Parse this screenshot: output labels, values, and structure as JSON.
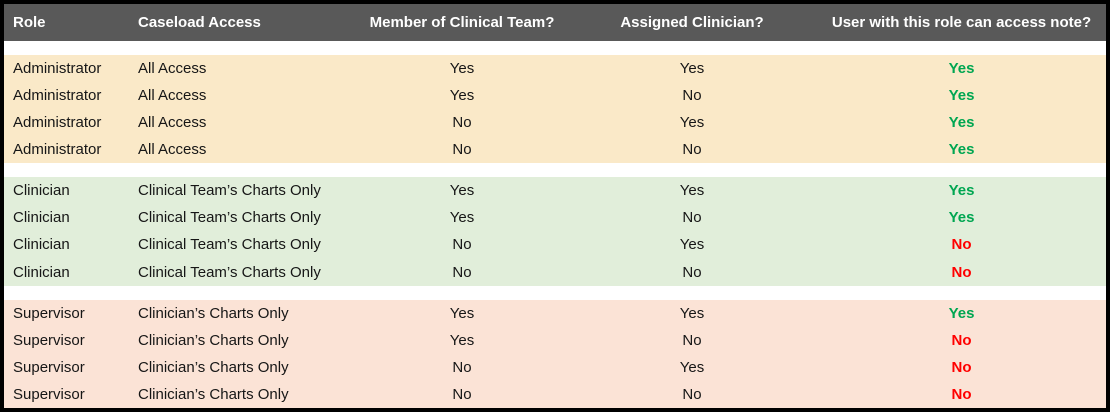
{
  "colors": {
    "frame_border": "#000000",
    "header_bg": "#595959",
    "header_text": "#FFFFFF",
    "body_text": "#161616",
    "yes_green": "#00A651",
    "no_red": "#FF0000",
    "administrator_bg": "#FAE9C8",
    "clinician_bg": "#E1EEDA",
    "supervisor_bg": "#FBE3D6",
    "gap_bg": "#FFFFFF"
  },
  "table": {
    "headers": [
      "Role",
      "Caseload Access",
      "Member of Clinical Team?",
      "Assigned Clinician?",
      "User with this role can access note?"
    ],
    "groups": [
      {
        "name": "administrator",
        "bg_key": "administrator_bg",
        "rows": [
          {
            "role": "Administrator",
            "caseload_access": "All Access",
            "member_of_clinical_team": "Yes",
            "assigned_clinician": "Yes",
            "can_access_note": "Yes"
          },
          {
            "role": "Administrator",
            "caseload_access": "All Access",
            "member_of_clinical_team": "Yes",
            "assigned_clinician": "No",
            "can_access_note": "Yes"
          },
          {
            "role": "Administrator",
            "caseload_access": "All Access",
            "member_of_clinical_team": "No",
            "assigned_clinician": "Yes",
            "can_access_note": "Yes"
          },
          {
            "role": "Administrator",
            "caseload_access": "All Access",
            "member_of_clinical_team": "No",
            "assigned_clinician": "No",
            "can_access_note": "Yes"
          }
        ]
      },
      {
        "name": "clinician",
        "bg_key": "clinician_bg",
        "rows": [
          {
            "role": "Clinician",
            "caseload_access": "Clinical Team’s Charts Only",
            "member_of_clinical_team": "Yes",
            "assigned_clinician": "Yes",
            "can_access_note": "Yes"
          },
          {
            "role": "Clinician",
            "caseload_access": "Clinical Team’s Charts Only",
            "member_of_clinical_team": "Yes",
            "assigned_clinician": "No",
            "can_access_note": "Yes"
          },
          {
            "role": "Clinician",
            "caseload_access": "Clinical Team’s Charts Only",
            "member_of_clinical_team": "No",
            "assigned_clinician": "Yes",
            "can_access_note": "No"
          },
          {
            "role": "Clinician",
            "caseload_access": "Clinical Team’s Charts Only",
            "member_of_clinical_team": "No",
            "assigned_clinician": "No",
            "can_access_note": "No"
          }
        ]
      },
      {
        "name": "supervisor",
        "bg_key": "supervisor_bg",
        "rows": [
          {
            "role": "Supervisor",
            "caseload_access": "Clinician’s Charts Only",
            "member_of_clinical_team": "Yes",
            "assigned_clinician": "Yes",
            "can_access_note": "Yes"
          },
          {
            "role": "Supervisor",
            "caseload_access": "Clinician’s Charts Only",
            "member_of_clinical_team": "Yes",
            "assigned_clinician": "No",
            "can_access_note": "No"
          },
          {
            "role": "Supervisor",
            "caseload_access": "Clinician’s Charts Only",
            "member_of_clinical_team": "No",
            "assigned_clinician": "Yes",
            "can_access_note": "No"
          },
          {
            "role": "Supervisor",
            "caseload_access": "Clinician’s Charts Only",
            "member_of_clinical_team": "No",
            "assigned_clinician": "No",
            "can_access_note": "No"
          }
        ]
      }
    ]
  }
}
